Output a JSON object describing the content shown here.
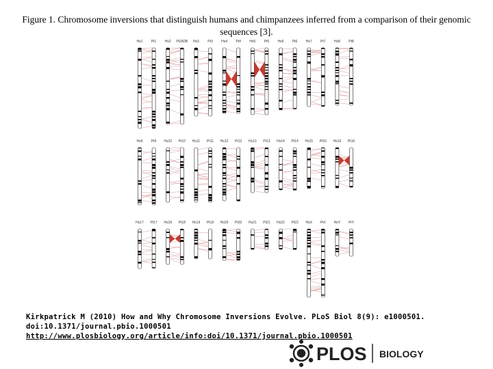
{
  "title": "Figure 1. Chromosome inversions that distinguish humans and chimpanzees inferred from a comparison of their genomic sequences [3].",
  "figure": {
    "rows": [
      [
        "Hs1",
        "Pt1",
        "Hs2",
        "Pt2A2B",
        "Hs3",
        "Pt3",
        "Hs4",
        "Pt4",
        "Hs5",
        "Pt5",
        "Hs6",
        "Pt6",
        "Hs7",
        "Pt7",
        "Hs8",
        "Pt8"
      ],
      [
        "Hs9",
        "Pt9",
        "Hs10",
        "Pt10",
        "Hs11",
        "Pt11",
        "Hs12",
        "Pt12",
        "Hs13",
        "Pt13",
        "Hs14",
        "Pt14",
        "Hs15",
        "Pt15",
        "Hs16",
        "Pt16"
      ],
      [
        "Hs17",
        "Pt17",
        "Hs18",
        "Pt18",
        "Hs19",
        "Pt19",
        "Hs20",
        "Pt20",
        "Hs21",
        "Pt21",
        "Hs22",
        "Pt22",
        "HsX",
        "PtX",
        "HsY",
        "PtY"
      ]
    ]
  },
  "citation": {
    "reference": "Kirkpatrick M (2010) How and Why Chromosome Inversions Evolve. PLoS Biol 8(9): e1000501.",
    "doi": "doi:10.1371/journal.pbio.1000501",
    "url": "http://www.plosbiology.org/article/info:doi/10.1371/journal.pbio.1000501"
  },
  "logo": {
    "brand": "PLOS",
    "journal": "BIOLOGY"
  }
}
